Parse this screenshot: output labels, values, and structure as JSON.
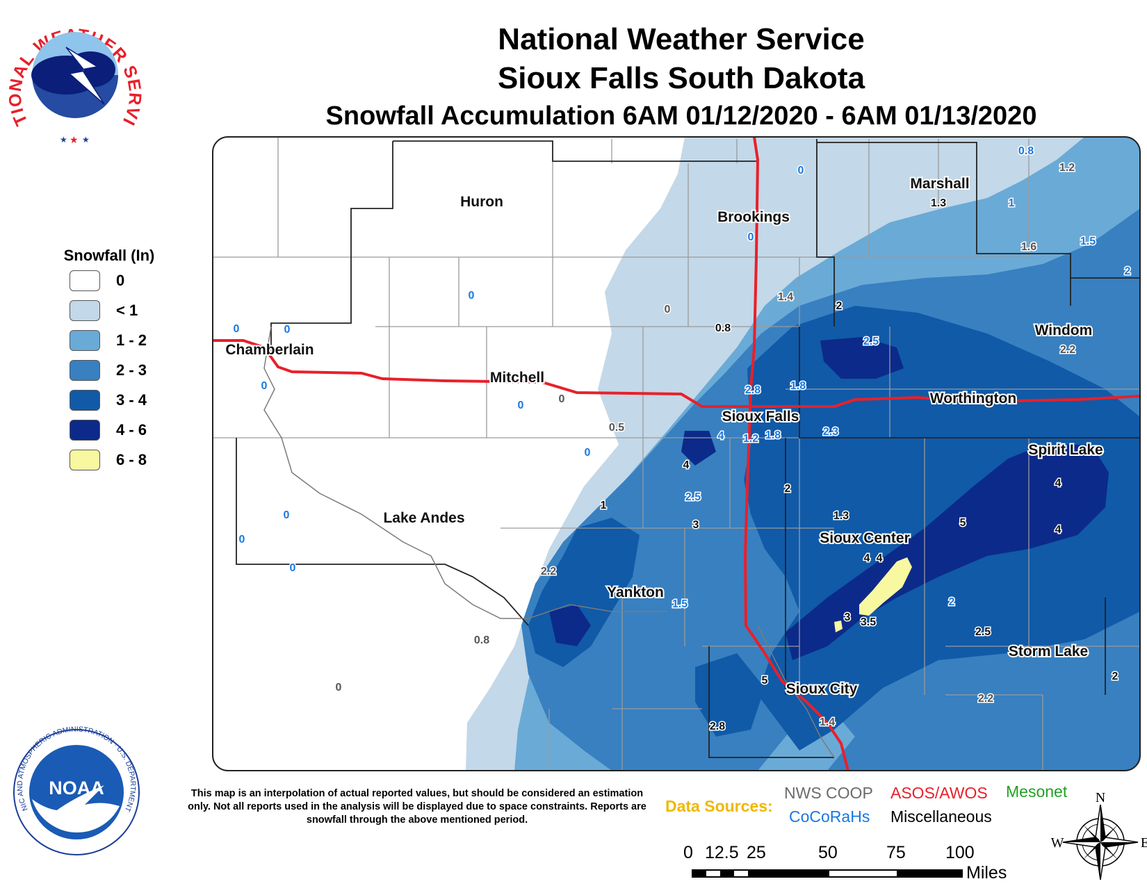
{
  "header": {
    "line1": "National Weather Service",
    "line2": "Sioux Falls South Dakota",
    "line3": "Snowfall Accumulation 6AM 01/12/2020 - 6AM 01/13/2020"
  },
  "logos": {
    "nws_text": "NATIONAL WEATHER SERVICE",
    "noaa_text": "NOAA",
    "noaa_ring": "NATIONAL OCEANIC AND ATMOSPHERIC ADMINISTRATION · U.S. DEPARTMENT OF COMMERCE"
  },
  "legend": {
    "title": "Snowfall (In)",
    "items": [
      {
        "label": "0",
        "color": "#ffffff"
      },
      {
        "label": "< 1",
        "color": "#c3d8e8"
      },
      {
        "label": "1 - 2",
        "color": "#6aaad6"
      },
      {
        "label": "2 - 3",
        "color": "#3880c0"
      },
      {
        "label": "3 - 4",
        "color": "#105aa8"
      },
      {
        "label": "4 - 6",
        "color": "#0c2a8a"
      },
      {
        "label": "6 - 8",
        "color": "#f8f8a0"
      }
    ]
  },
  "cities": [
    {
      "name": "Huron"
    },
    {
      "name": "Brookings"
    },
    {
      "name": "Marshall"
    },
    {
      "name": "Chamberlain"
    },
    {
      "name": "Mitchell"
    },
    {
      "name": "Windom"
    },
    {
      "name": "Worthington"
    },
    {
      "name": "Sioux Falls"
    },
    {
      "name": "Spirit Lake"
    },
    {
      "name": "Lake Andes"
    },
    {
      "name": "Sioux Center"
    },
    {
      "name": "Yankton"
    },
    {
      "name": "Storm Lake"
    },
    {
      "name": "Sioux City"
    }
  ],
  "reports": [
    {
      "v": "0.8"
    },
    {
      "v": "1.2"
    },
    {
      "v": "0"
    },
    {
      "v": "1.3"
    },
    {
      "v": "1"
    },
    {
      "v": "0"
    },
    {
      "v": "1.6"
    },
    {
      "v": "1.5"
    },
    {
      "v": "2"
    },
    {
      "v": "0"
    },
    {
      "v": "1.4"
    },
    {
      "v": "2"
    },
    {
      "v": "0"
    },
    {
      "v": "0.8"
    },
    {
      "v": "0"
    },
    {
      "v": "0"
    },
    {
      "v": "2.2"
    },
    {
      "v": "2.5"
    },
    {
      "v": "0"
    },
    {
      "v": "2.8"
    },
    {
      "v": "1.8"
    },
    {
      "v": "0"
    },
    {
      "v": "0"
    },
    {
      "v": "0.5"
    },
    {
      "v": "4"
    },
    {
      "v": "1.2"
    },
    {
      "v": "1.8"
    },
    {
      "v": "2.3"
    },
    {
      "v": "0"
    },
    {
      "v": "4"
    },
    {
      "v": "2"
    },
    {
      "v": "4"
    },
    {
      "v": "2.5"
    },
    {
      "v": "1"
    },
    {
      "v": "0"
    },
    {
      "v": "1.3"
    },
    {
      "v": "5"
    },
    {
      "v": "3"
    },
    {
      "v": "4"
    },
    {
      "v": "0"
    },
    {
      "v": "0"
    },
    {
      "v": "4"
    },
    {
      "v": "4"
    },
    {
      "v": "2.2"
    },
    {
      "v": "2"
    },
    {
      "v": "1.5"
    },
    {
      "v": "3"
    },
    {
      "v": "3.5"
    },
    {
      "v": "2.5"
    },
    {
      "v": "0.8"
    },
    {
      "v": "2"
    },
    {
      "v": "5"
    },
    {
      "v": "0"
    },
    {
      "v": "2.2"
    },
    {
      "v": "2.8"
    },
    {
      "v": "1.4"
    }
  ],
  "disclaimer": "This map is an interpolation of actual reported values, but should be considered an estimation only. Not all reports used in the analysis will be displayed due to space constraints. Reports are snowfall through the above mentioned period.",
  "sources": {
    "label": "Data Sources:",
    "coop": "NWS COOP",
    "asos": "ASOS/AWOS",
    "mesonet": "Mesonet",
    "cocorahs": "CoCoRaHs",
    "misc": "Miscellaneous"
  },
  "scale": {
    "ticks": [
      "0",
      "12.5",
      "25",
      "50",
      "75",
      "100"
    ],
    "unit": "Miles"
  },
  "compass": {
    "n": "N",
    "s": "S",
    "e": "E",
    "w": "W"
  }
}
